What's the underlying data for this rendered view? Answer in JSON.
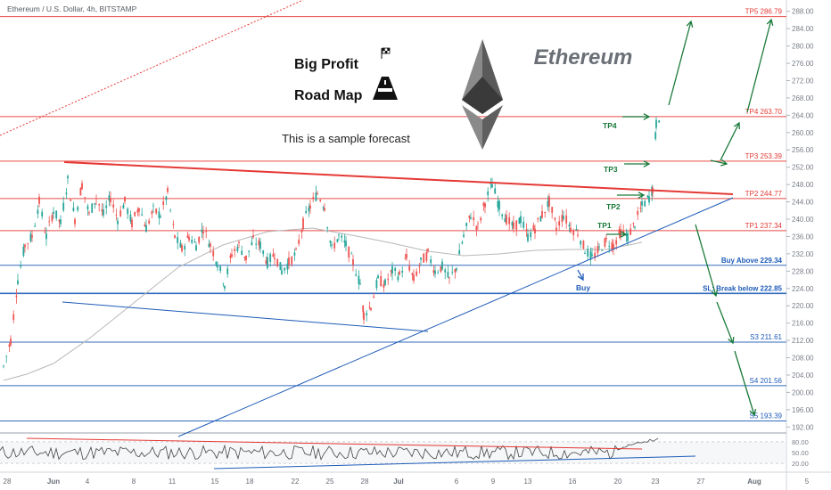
{
  "chart_data": {
    "type": "candlestick",
    "title": "Ethereum / U.S. Dollar, 4h, BITSTAMP",
    "heading": "Ethereum",
    "header_lines": [
      "Big Profit",
      "Road Map"
    ],
    "subtitle": "This is a sample forecast",
    "ylim": [
      190,
      290
    ],
    "y_ticks": [
      192,
      196,
      200,
      204,
      208,
      212,
      216,
      220,
      224,
      228,
      232,
      236,
      240,
      244,
      248,
      252,
      256,
      260,
      264,
      268,
      272,
      276,
      280,
      284,
      288
    ],
    "x_ticks": [
      "28",
      "Jun",
      "4",
      "8",
      "11",
      "15",
      "18",
      "22",
      "25",
      "28",
      "Jul",
      "6",
      "9",
      "13",
      "16",
      "20",
      "23",
      "27",
      "Aug",
      "5"
    ],
    "levels": [
      {
        "label": "TP5 286.79",
        "value": 286.79,
        "color": "#e53935"
      },
      {
        "label": "TP4 263.70",
        "value": 263.7,
        "color": "#e53935"
      },
      {
        "label": "TP3 253.39",
        "value": 253.39,
        "color": "#e53935"
      },
      {
        "label": "TP2 244.77",
        "value": 244.77,
        "color": "#e53935"
      },
      {
        "label": "TP1 237.34",
        "value": 237.34,
        "color": "#e53935"
      },
      {
        "label": "Buy Above 229.34",
        "value": 229.34,
        "color": "#1e5bb8"
      },
      {
        "label": "SL: Break below 222.85",
        "value": 222.85,
        "color": "#1e5bb8"
      },
      {
        "label": "S3 211.61",
        "value": 211.61,
        "color": "#1e5bb8"
      },
      {
        "label": "S4 201.56",
        "value": 201.56,
        "color": "#1e5bb8"
      },
      {
        "label": "S5 193.39",
        "value": 193.39,
        "color": "#1e5bb8"
      }
    ],
    "chart_markers": [
      "TP1",
      "TP2",
      "TP3",
      "TP4",
      "Buy"
    ],
    "price_path": [
      {
        "t": 0,
        "p": 206
      },
      {
        "t": 4,
        "p": 212
      },
      {
        "t": 8,
        "p": 226
      },
      {
        "t": 12,
        "p": 234
      },
      {
        "t": 16,
        "p": 236
      },
      {
        "t": 20,
        "p": 244
      },
      {
        "t": 24,
        "p": 236
      },
      {
        "t": 28,
        "p": 242
      },
      {
        "t": 32,
        "p": 239
      },
      {
        "t": 36,
        "p": 249
      },
      {
        "t": 40,
        "p": 240
      },
      {
        "t": 44,
        "p": 248
      },
      {
        "t": 48,
        "p": 241
      },
      {
        "t": 52,
        "p": 245
      },
      {
        "t": 56,
        "p": 241
      },
      {
        "t": 60,
        "p": 245
      },
      {
        "t": 64,
        "p": 240
      },
      {
        "t": 68,
        "p": 244
      },
      {
        "t": 72,
        "p": 239
      },
      {
        "t": 76,
        "p": 243
      },
      {
        "t": 80,
        "p": 238
      },
      {
        "t": 84,
        "p": 242
      },
      {
        "t": 88,
        "p": 241
      },
      {
        "t": 92,
        "p": 246
      },
      {
        "t": 96,
        "p": 236
      },
      {
        "t": 100,
        "p": 233
      },
      {
        "t": 104,
        "p": 236
      },
      {
        "t": 108,
        "p": 234
      },
      {
        "t": 112,
        "p": 238
      },
      {
        "t": 116,
        "p": 234
      },
      {
        "t": 120,
        "p": 230
      },
      {
        "t": 124,
        "p": 225
      },
      {
        "t": 128,
        "p": 232
      },
      {
        "t": 132,
        "p": 234
      },
      {
        "t": 136,
        "p": 231
      },
      {
        "t": 140,
        "p": 235
      },
      {
        "t": 144,
        "p": 234
      },
      {
        "t": 148,
        "p": 230
      },
      {
        "t": 152,
        "p": 232
      },
      {
        "t": 156,
        "p": 228
      },
      {
        "t": 160,
        "p": 230
      },
      {
        "t": 164,
        "p": 232
      },
      {
        "t": 168,
        "p": 239
      },
      {
        "t": 172,
        "p": 243
      },
      {
        "t": 176,
        "p": 246
      },
      {
        "t": 180,
        "p": 243
      },
      {
        "t": 184,
        "p": 233
      },
      {
        "t": 188,
        "p": 236
      },
      {
        "t": 192,
        "p": 234
      },
      {
        "t": 196,
        "p": 230
      },
      {
        "t": 200,
        "p": 225
      },
      {
        "t": 202,
        "p": 218
      },
      {
        "t": 206,
        "p": 220
      },
      {
        "t": 210,
        "p": 226
      },
      {
        "t": 214,
        "p": 225
      },
      {
        "t": 218,
        "p": 228
      },
      {
        "t": 222,
        "p": 227
      },
      {
        "t": 226,
        "p": 231
      },
      {
        "t": 230,
        "p": 226
      },
      {
        "t": 234,
        "p": 230
      },
      {
        "t": 238,
        "p": 232
      },
      {
        "t": 242,
        "p": 228
      },
      {
        "t": 246,
        "p": 229
      },
      {
        "t": 250,
        "p": 226
      },
      {
        "t": 254,
        "p": 229
      },
      {
        "t": 258,
        "p": 236
      },
      {
        "t": 262,
        "p": 241
      },
      {
        "t": 266,
        "p": 238
      },
      {
        "t": 270,
        "p": 244
      },
      {
        "t": 274,
        "p": 248
      },
      {
        "t": 278,
        "p": 243
      },
      {
        "t": 282,
        "p": 240
      },
      {
        "t": 286,
        "p": 238
      },
      {
        "t": 290,
        "p": 240
      },
      {
        "t": 294,
        "p": 236
      },
      {
        "t": 298,
        "p": 238
      },
      {
        "t": 302,
        "p": 241
      },
      {
        "t": 306,
        "p": 244
      },
      {
        "t": 310,
        "p": 238
      },
      {
        "t": 314,
        "p": 241
      },
      {
        "t": 318,
        "p": 238
      },
      {
        "t": 322,
        "p": 237
      },
      {
        "t": 326,
        "p": 233
      },
      {
        "t": 330,
        "p": 231
      },
      {
        "t": 334,
        "p": 233
      },
      {
        "t": 338,
        "p": 235
      },
      {
        "t": 342,
        "p": 234
      },
      {
        "t": 346,
        "p": 237
      },
      {
        "t": 350,
        "p": 236
      },
      {
        "t": 354,
        "p": 239
      },
      {
        "t": 358,
        "p": 243
      },
      {
        "t": 362,
        "p": 245
      },
      {
        "t": 364,
        "p": 247
      },
      {
        "t": 366,
        "p": 262
      },
      {
        "t": 368,
        "p": 264
      }
    ],
    "indicator": {
      "ticks": [
        "80.00",
        "50.00",
        "20.00"
      ],
      "range": [
        0,
        100
      ]
    }
  }
}
